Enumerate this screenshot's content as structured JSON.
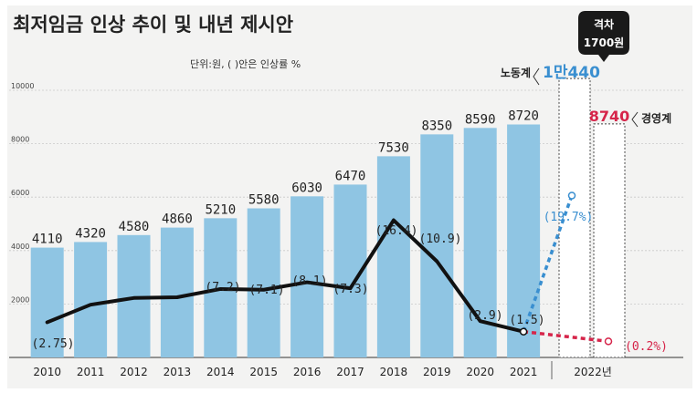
{
  "chart_data": {
    "type": "bar",
    "title": "최저임금 인상 추이 및 내년 제시안",
    "subtitle": "단위:원, ( )안은 인상률 %",
    "categories": [
      "2010",
      "2011",
      "2012",
      "2013",
      "2014",
      "2015",
      "2016",
      "2017",
      "2018",
      "2019",
      "2020",
      "2021"
    ],
    "values": [
      4110,
      4320,
      4580,
      4860,
      5210,
      5580,
      6030,
      6470,
      7530,
      8350,
      8590,
      8720
    ],
    "value_labels": [
      "4110",
      "4320",
      "4580",
      "4860",
      "5210",
      "5580",
      "6030",
      "6470",
      "7530",
      "8350",
      "8590",
      "8720"
    ],
    "ylim": [
      0,
      10000
    ],
    "yticks": [
      2000,
      4000,
      6000,
      8000,
      10000
    ],
    "ytick_labels": [
      "2000",
      "4000",
      "6000",
      "8000",
      "10000"
    ],
    "grid": true,
    "bar_color": "#8fc5e3",
    "rate_line": {
      "values": [
        2.75,
        5.1,
        6.0,
        6.1,
        7.2,
        7.1,
        8.1,
        7.3,
        16.4,
        10.9,
        2.9,
        1.5
      ],
      "labels": [
        "(2.75)",
        "",
        "",
        "",
        "(7.2)",
        "(7.1)",
        "(8.1)",
        "(7.3)",
        "(16.4)",
        "(10.9)",
        "(2.9)",
        "(1.5)"
      ],
      "rate_range": [
        0,
        20
      ],
      "color": "#111111"
    },
    "proposal_year_label": "2022년",
    "proposals": [
      {
        "name": "노동계",
        "value": 10440,
        "value_label": "1만440",
        "rate": 19.7,
        "rate_label": "(19.7%)",
        "color": "#3a8fd0"
      },
      {
        "name": "경영계",
        "value": 8740,
        "value_label": "8740",
        "rate": 0.2,
        "rate_label": "(0.2%)",
        "color": "#d6254a"
      }
    ],
    "gap_callout": {
      "line1": "격차",
      "line2": "1700원"
    }
  }
}
